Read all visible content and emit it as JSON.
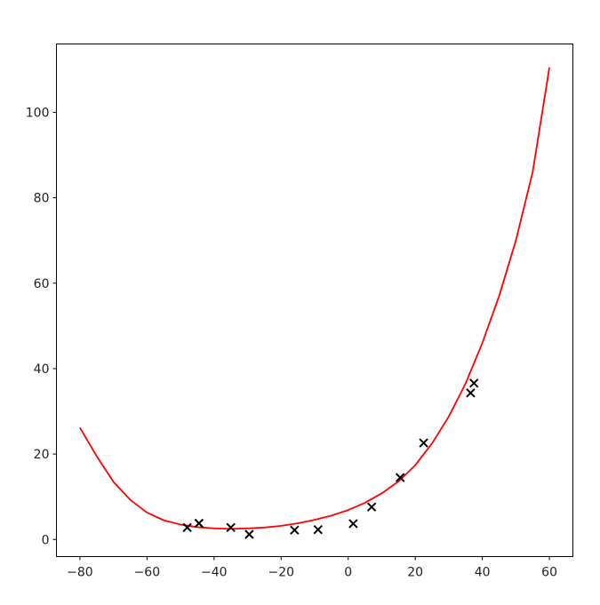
{
  "chart_data": {
    "type": "scatter",
    "title": "",
    "xlabel": "",
    "ylabel": "",
    "xlim": [
      -87,
      67
    ],
    "ylim": [
      -4,
      116
    ],
    "grid": false,
    "xticks": [
      -80,
      -60,
      -40,
      -20,
      0,
      20,
      40,
      60
    ],
    "xtick_labels": [
      "−80",
      "−60",
      "−40",
      "−20",
      "0",
      "20",
      "40",
      "60"
    ],
    "yticks": [
      0,
      20,
      40,
      60,
      80,
      100
    ],
    "ytick_labels": [
      "0",
      "20",
      "40",
      "60",
      "80",
      "100"
    ],
    "series": [
      {
        "kind": "scatter",
        "marker": "x",
        "color": "#000000",
        "points": [
          [
            -48,
            2.8
          ],
          [
            -44.5,
            3.8
          ],
          [
            -35,
            2.8
          ],
          [
            -29.5,
            1.2
          ],
          [
            -16,
            2.2
          ],
          [
            -9,
            2.3
          ],
          [
            1.5,
            3.7
          ],
          [
            7,
            7.6
          ],
          [
            15.5,
            14.5
          ],
          [
            22.5,
            22.6
          ],
          [
            36.5,
            34.3
          ],
          [
            37.5,
            36.6
          ]
        ]
      },
      {
        "kind": "line",
        "color": "#ff0000",
        "points": [
          [
            -80,
            26.2
          ],
          [
            -75,
            19.5
          ],
          [
            -70,
            13.5
          ],
          [
            -65,
            9.3
          ],
          [
            -60,
            6.3
          ],
          [
            -55,
            4.5
          ],
          [
            -50,
            3.5
          ],
          [
            -45,
            2.9
          ],
          [
            -40,
            2.6
          ],
          [
            -35,
            2.5
          ],
          [
            -30,
            2.6
          ],
          [
            -25,
            2.8
          ],
          [
            -20,
            3.2
          ],
          [
            -15,
            3.8
          ],
          [
            -10,
            4.6
          ],
          [
            -5,
            5.6
          ],
          [
            0,
            6.9
          ],
          [
            5,
            8.6
          ],
          [
            10,
            10.8
          ],
          [
            15,
            13.6
          ],
          [
            20,
            17.4
          ],
          [
            25,
            22.5
          ],
          [
            30,
            28.8
          ],
          [
            35,
            36.5
          ],
          [
            40,
            46.0
          ],
          [
            45,
            57.0
          ],
          [
            50,
            70.0
          ],
          [
            55,
            86.0
          ],
          [
            60,
            110.5
          ]
        ]
      }
    ]
  }
}
